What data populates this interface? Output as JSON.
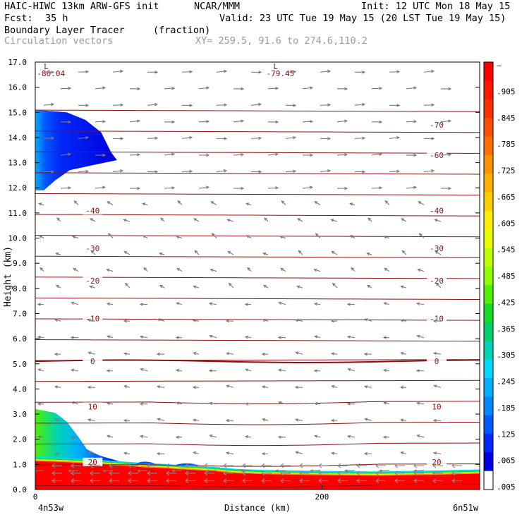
{
  "header": {
    "model": "HAIC-HIWC 13km ARW-GFS init",
    "org": "NCAR/MMM",
    "init": "Init: 12 UTC Mon 18 May 15",
    "fcst_label": "Fcst:",
    "fcst_value": "35 h",
    "valid": "Valid: 23 UTC Tue 19 May 15 (20 LST Tue 19 May 15)",
    "field": "Boundary Layer Tracer",
    "field_units": "(fraction)",
    "overlay": "Circulation vectors",
    "xy": "XY= 259.5, 91.6 to 274.6,110.2"
  },
  "chart_data": {
    "type": "heatmap",
    "title": "Boundary Layer Tracer",
    "xlabel": "Distance (km)",
    "ylabel": "Height (km)",
    "xlim": [
      0,
      310
    ],
    "ylim": [
      0,
      17
    ],
    "x_ticks": [
      {
        "value": 0,
        "label": "0"
      },
      {
        "value": 200,
        "label": "200"
      }
    ],
    "x_end_labels": {
      "left": "4n53w",
      "right": "6n51w"
    },
    "y_ticks": [
      0,
      1,
      2,
      3,
      4,
      5,
      6,
      7,
      8,
      9,
      10,
      11,
      12,
      13,
      14,
      15,
      16,
      17
    ],
    "y_tick_labels": [
      "0.0",
      "1.0",
      "2.0",
      "3.0",
      "4.0",
      "5.0",
      "6.0",
      "7.0",
      "8.0",
      "9.0",
      "10.0",
      "11.0",
      "12.0",
      "13.0",
      "14.0",
      "15.0",
      "16.0",
      "17.0"
    ],
    "colorbar": {
      "labels": [
        "–",
        ".905",
        ".845",
        ".785",
        ".725",
        ".665",
        ".605",
        ".545",
        ".485",
        ".425",
        ".365",
        ".305",
        ".245",
        ".185",
        ".125",
        ".065",
        ".005"
      ],
      "colors": [
        "#ff0000",
        "#ff1800",
        "#ff3000",
        "#ff5000",
        "#ff7000",
        "#ff9000",
        "#ffb000",
        "#ffcc00",
        "#ffee00",
        "#e8ff00",
        "#c0ff00",
        "#90ff00",
        "#50f000",
        "#18dc28",
        "#00d070",
        "#00d4b4",
        "#00d8ff",
        "#00b0ff",
        "#0088ff",
        "#0058ff",
        "#0028f8",
        "#0000e0",
        "#ffffff"
      ]
    },
    "temperature_contours": [
      {
        "label": "-70",
        "h": 14.5
      },
      {
        "label": "-60",
        "h": 13.3
      },
      {
        "label": "-40",
        "h": 11.1
      },
      {
        "label": "-30",
        "h": 9.6
      },
      {
        "label": "-20",
        "h": 8.3
      },
      {
        "label": "-10",
        "h": 6.8
      },
      {
        "label": "0",
        "h": 5.1
      },
      {
        "label": "10",
        "h": 3.3
      },
      {
        "label": "20",
        "h": 1.1
      }
    ],
    "temperature_minima": [
      {
        "marker": "L",
        "label": "-80.04",
        "x": 8
      },
      {
        "marker": "L",
        "label": "-79.45",
        "x": 168
      }
    ],
    "tracer_regions": [
      {
        "name": "upper plume",
        "x": [
          0,
          55
        ],
        "z": [
          11.9,
          15.1
        ],
        "value_range": [
          0.005,
          0.125
        ]
      },
      {
        "name": "lower plume",
        "x": [
          0,
          60
        ],
        "z": [
          1.0,
          3.2
        ],
        "value_range": [
          0.005,
          0.8
        ]
      },
      {
        "name": "boundary layer",
        "x": [
          0,
          310
        ],
        "z": [
          0,
          1.0
        ],
        "value_range": [
          0.8,
          1.0
        ]
      }
    ],
    "grid": false
  }
}
